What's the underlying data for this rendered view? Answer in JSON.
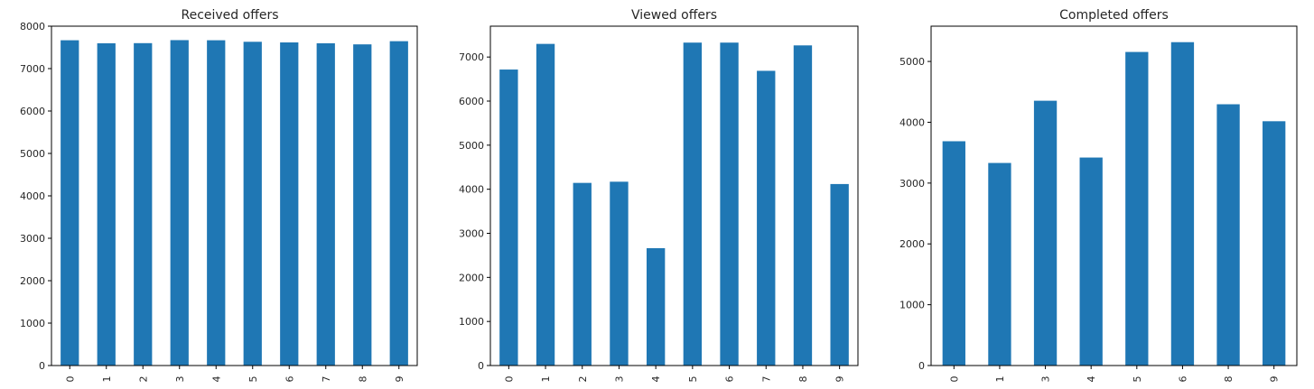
{
  "chart_data": [
    {
      "type": "bar",
      "title": "Received offers",
      "xlabel": "",
      "ylabel": "",
      "categories": [
        "0",
        "1",
        "2",
        "3",
        "4",
        "5",
        "6",
        "7",
        "8",
        "9"
      ],
      "values": [
        7668,
        7597,
        7600,
        7671,
        7668,
        7632,
        7617,
        7597,
        7571,
        7646
      ],
      "ylim": [
        0,
        8000
      ],
      "yticks": [
        "0",
        "1000",
        "2000",
        "3000",
        "4000",
        "5000",
        "6000",
        "7000",
        "8000"
      ],
      "grid": false,
      "color": "#1f77b4"
    },
    {
      "type": "bar",
      "title": "Viewed offers",
      "xlabel": "",
      "ylabel": "",
      "categories": [
        "0",
        "1",
        "2",
        "3",
        "4",
        "5",
        "6",
        "7",
        "8",
        "9"
      ],
      "values": [
        6716,
        7298,
        4144,
        4171,
        2663,
        7327,
        7327,
        6687,
        7264,
        4118
      ],
      "ylim": [
        0,
        7700
      ],
      "yticks": [
        "0",
        "1000",
        "2000",
        "3000",
        "4000",
        "5000",
        "6000",
        "7000"
      ],
      "grid": false,
      "color": "#1f77b4"
    },
    {
      "type": "bar",
      "title": "Completed offers",
      "xlabel": "",
      "ylabel": "",
      "categories": [
        "0",
        "1",
        "3",
        "4",
        "5",
        "6",
        "8",
        "9"
      ],
      "values": [
        3688,
        3331,
        4354,
        3420,
        5156,
        5317,
        4296,
        4017
      ],
      "ylim": [
        0,
        5580
      ],
      "yticks": [
        "0",
        "1000",
        "2000",
        "3000",
        "4000",
        "5000"
      ],
      "grid": false,
      "color": "#1f77b4"
    }
  ]
}
